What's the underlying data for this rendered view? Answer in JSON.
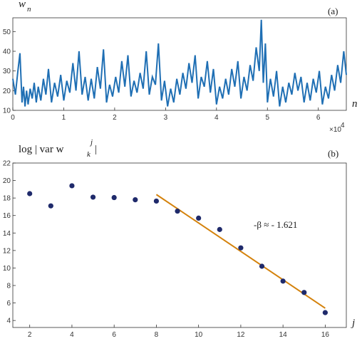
{
  "chart_data": [
    {
      "type": "line",
      "panel_label": "(a)",
      "ylabel": "w",
      "ylabel_sub": "n",
      "xlabel": "n",
      "x_multiplier": "×10",
      "x_multiplier_exp": "4",
      "xlim": [
        0,
        6.55
      ],
      "ylim": [
        10,
        57
      ],
      "xticks": [
        0,
        1,
        2,
        3,
        4,
        5,
        6
      ],
      "yticks": [
        10,
        20,
        30,
        40,
        50
      ],
      "color": "#1f6fb4",
      "series": [
        {
          "x": [
            0,
            0.05,
            0.1,
            0.14,
            0.18,
            0.21,
            0.24,
            0.27,
            0.3,
            0.34,
            0.38,
            0.42,
            0.46,
            0.5,
            0.55,
            0.6,
            0.65,
            0.7,
            0.76,
            0.82,
            0.88,
            0.94,
            1.0,
            1.06,
            1.12,
            1.18,
            1.24,
            1.3,
            1.36,
            1.42,
            1.48,
            1.54,
            1.6,
            1.66,
            1.72,
            1.78,
            1.84,
            1.9,
            1.96,
            2.02,
            2.08,
            2.14,
            2.2,
            2.26,
            2.32,
            2.38,
            2.44,
            2.5,
            2.56,
            2.62,
            2.68,
            2.74,
            2.8,
            2.86,
            2.92,
            2.98,
            3.04,
            3.1,
            3.16,
            3.22,
            3.28,
            3.34,
            3.4,
            3.46,
            3.52,
            3.58,
            3.64,
            3.7,
            3.76,
            3.82,
            3.88,
            3.94,
            4.0,
            4.06,
            4.12,
            4.18,
            4.24,
            4.3,
            4.36,
            4.42,
            4.48,
            4.54,
            4.6,
            4.66,
            4.72,
            4.78,
            4.84,
            4.88,
            4.92,
            4.96,
            5.0,
            5.06,
            5.12,
            5.18,
            5.24,
            5.3,
            5.36,
            5.42,
            5.48,
            5.54,
            5.6,
            5.66,
            5.72,
            5.78,
            5.84,
            5.9,
            5.96,
            6.02,
            6.08,
            6.14,
            6.2,
            6.26,
            6.32,
            6.38,
            6.44,
            6.5,
            6.55
          ],
          "y": [
            26,
            18,
            30,
            39,
            14,
            22,
            12,
            20,
            13,
            21,
            16,
            24,
            14,
            22,
            15,
            26,
            18,
            31,
            14,
            24,
            17,
            28,
            15,
            25,
            19,
            34,
            20,
            40,
            18,
            27,
            15,
            26,
            16,
            32,
            21,
            41,
            14,
            23,
            17,
            27,
            19,
            35,
            22,
            38,
            17,
            25,
            19,
            29,
            21,
            40,
            18,
            27,
            23,
            44,
            15,
            25,
            12,
            21,
            14,
            26,
            18,
            29,
            21,
            34,
            24,
            38,
            16,
            27,
            22,
            35,
            19,
            31,
            13,
            22,
            16,
            26,
            18,
            31,
            22,
            35,
            16,
            27,
            20,
            33,
            25,
            42,
            30,
            56,
            24,
            44,
            14,
            26,
            17,
            30,
            12,
            22,
            14,
            24,
            18,
            29,
            20,
            27,
            14,
            24,
            15,
            26,
            19,
            30,
            13,
            22,
            16,
            28,
            20,
            33,
            24,
            40,
            28
          ]
        }
      ]
    },
    {
      "type": "scatter",
      "panel_label": "(b)",
      "ylabel_pre": "log | var  w",
      "ylabel_sub": "k",
      "ylabel_sup": "j",
      "ylabel_post": " |",
      "xlabel": "j",
      "xlim": [
        1.2,
        17
      ],
      "ylim": [
        3.2,
        22
      ],
      "xticks": [
        2,
        4,
        6,
        8,
        10,
        12,
        14,
        16
      ],
      "yticks": [
        4,
        6,
        8,
        10,
        12,
        14,
        16,
        18,
        20,
        22
      ],
      "points": {
        "x": [
          2,
          3,
          4,
          5,
          6,
          7,
          8,
          9,
          10,
          11,
          12,
          13,
          14,
          15,
          16
        ],
        "y": [
          18.5,
          17.1,
          19.4,
          18.1,
          18.05,
          17.8,
          17.65,
          16.5,
          15.7,
          14.4,
          12.3,
          10.2,
          8.5,
          7.2,
          4.9
        ],
        "color": "#1f2a6b"
      },
      "fit_line": {
        "x": [
          8,
          16
        ],
        "y": [
          18.4,
          5.4
        ],
        "color": "#d4820c"
      },
      "annotation": "-β ≈ - 1.621"
    }
  ]
}
